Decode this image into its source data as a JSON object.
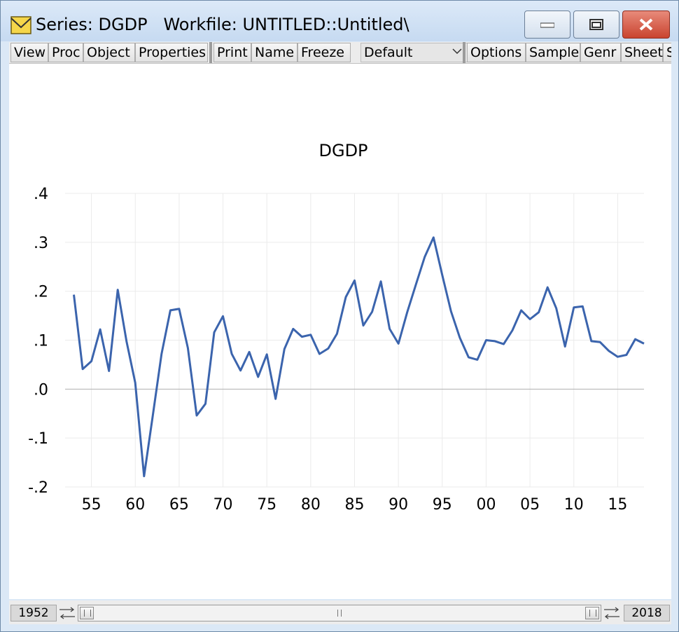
{
  "window": {
    "title": "Series: DGDP   Workfile: UNTITLED::Untitled\\",
    "icons": {
      "app": "envelope-icon",
      "minimize": "minimize-icon",
      "maximize": "maximize-icon",
      "close": "close-icon"
    },
    "close_color": "#c9442f"
  },
  "toolbar": {
    "view": "View",
    "proc": "Proc",
    "object": "Object",
    "properties": "Properties",
    "print": "Print",
    "name": "Name",
    "freeze": "Freeze",
    "view_mode": "Default",
    "options": "Options",
    "sample": "Sample",
    "genr": "Genr",
    "sheet": "Sheet",
    "overflow": "S"
  },
  "status": {
    "start": "1952",
    "end": "2018"
  },
  "chart_data": {
    "type": "line",
    "title": "DGDP",
    "xlabel": "",
    "ylabel": "",
    "line_color": "#3b64ad",
    "grid": true,
    "ylim": [
      -0.2,
      0.4
    ],
    "xlim": [
      1952,
      2018
    ],
    "yticks": [
      -0.2,
      -0.1,
      0.0,
      0.1,
      0.2,
      0.3,
      0.4
    ],
    "ytick_labels": [
      "-.2",
      "-.1",
      ".0",
      ".1",
      ".2",
      ".3",
      ".4"
    ],
    "xticks": [
      1955,
      1960,
      1965,
      1970,
      1975,
      1980,
      1985,
      1990,
      1995,
      2000,
      2005,
      2010,
      2015
    ],
    "xtick_labels": [
      "55",
      "60",
      "65",
      "70",
      "75",
      "80",
      "85",
      "90",
      "95",
      "00",
      "05",
      "10",
      "15"
    ],
    "series": [
      {
        "x": [
          1953,
          1954,
          1955,
          1956,
          1957,
          1958,
          1959,
          1960,
          1961,
          1962,
          1963,
          1964,
          1965,
          1966,
          1967,
          1968,
          1969,
          1970,
          1971,
          1972,
          1973,
          1974,
          1975,
          1976,
          1977,
          1978,
          1979,
          1980,
          1981,
          1982,
          1983,
          1984,
          1985,
          1986,
          1987,
          1988,
          1989,
          1990,
          1991,
          1992,
          1993,
          1994,
          1995,
          1996,
          1997,
          1998,
          1999,
          2000,
          2001,
          2002,
          2003,
          2004,
          2005,
          2006,
          2007,
          2008,
          2009,
          2010,
          2011,
          2012,
          2013,
          2014,
          2015,
          2016,
          2017,
          2018
        ],
        "values": [
          0.193,
          0.041,
          0.057,
          0.122,
          0.037,
          0.203,
          0.098,
          0.013,
          -0.178,
          -0.054,
          0.072,
          0.161,
          0.164,
          0.084,
          -0.054,
          -0.03,
          0.116,
          0.149,
          0.072,
          0.038,
          0.076,
          0.025,
          0.071,
          -0.02,
          0.082,
          0.123,
          0.107,
          0.111,
          0.072,
          0.083,
          0.113,
          0.188,
          0.222,
          0.13,
          0.158,
          0.22,
          0.123,
          0.093,
          0.157,
          0.214,
          0.27,
          0.31,
          0.233,
          0.159,
          0.105,
          0.065,
          0.06,
          0.1,
          0.098,
          0.092,
          0.12,
          0.161,
          0.143,
          0.157,
          0.208,
          0.165,
          0.087,
          0.167,
          0.169,
          0.098,
          0.096,
          0.078,
          0.066,
          0.07,
          0.102,
          0.093
        ]
      }
    ]
  }
}
